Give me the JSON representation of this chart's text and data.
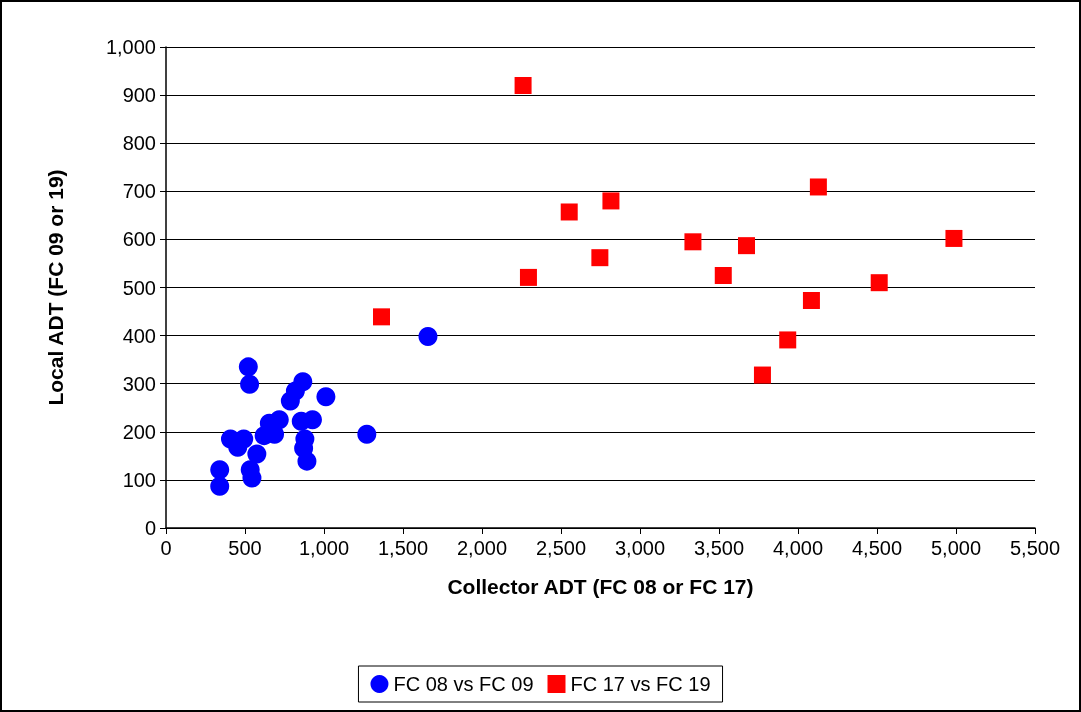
{
  "chart_data": {
    "type": "scatter",
    "xlabel": "Collector ADT (FC 08 or FC 17)",
    "ylabel": "Local ADT (FC 09 or 19)",
    "xlim": [
      0,
      5500
    ],
    "xticks": [
      0,
      500,
      {
        "value": 1000,
        "label": "1,000"
      },
      {
        "value": 1500,
        "label": "1,500"
      },
      {
        "value": 2000,
        "label": "2,000"
      },
      {
        "value": 2500,
        "label": "2,500"
      },
      {
        "value": 3000,
        "label": "3,000"
      },
      {
        "value": 3500,
        "label": "3,500"
      },
      {
        "value": 4000,
        "label": "4,000"
      },
      {
        "value": 4500,
        "label": "4,500"
      },
      {
        "value": 5000,
        "label": "5,000"
      },
      {
        "value": 5500,
        "label": "5,500"
      }
    ],
    "ylim": [
      0,
      1000
    ],
    "yticks": [
      0,
      100,
      200,
      300,
      400,
      500,
      600,
      700,
      800,
      900,
      {
        "value": 1000,
        "label": "1,000"
      }
    ],
    "grid": "y",
    "legend": "bottom",
    "series": [
      {
        "name": "FC 08 vs FC 09",
        "color": "#0000ff",
        "marker": "circle",
        "x": [
          1658,
          521,
          529,
          866,
          819,
          787,
          1012,
          717,
          654,
          687,
          621,
          856,
          927,
          1271,
          408,
          492,
          454,
          569,
          575,
          879,
          871,
          892,
          340,
          533,
          544,
          340
        ],
        "values": [
          398,
          335,
          299,
          304,
          285,
          264,
          273,
          225,
          218,
          195,
          192,
          222,
          225,
          195,
          185,
          185,
          168,
          null,
          154,
          185,
          166,
          139,
          121,
          121,
          104,
          87
        ]
      },
      {
        "name": "FC 17 vs FC 19",
        "color": "#ff0000",
        "marker": "square",
        "x": [
          2260,
          2552,
          2816,
          3335,
          2746,
          2294,
          1364,
          4129,
          3674,
          3527,
          4514,
          4085,
          3935,
          3775,
          4987
        ],
        "values": [
          920,
          657,
          680,
          595,
          562,
          521,
          439,
          709,
          587,
          525,
          510,
          473,
          391,
          318,
          602
        ]
      }
    ]
  }
}
